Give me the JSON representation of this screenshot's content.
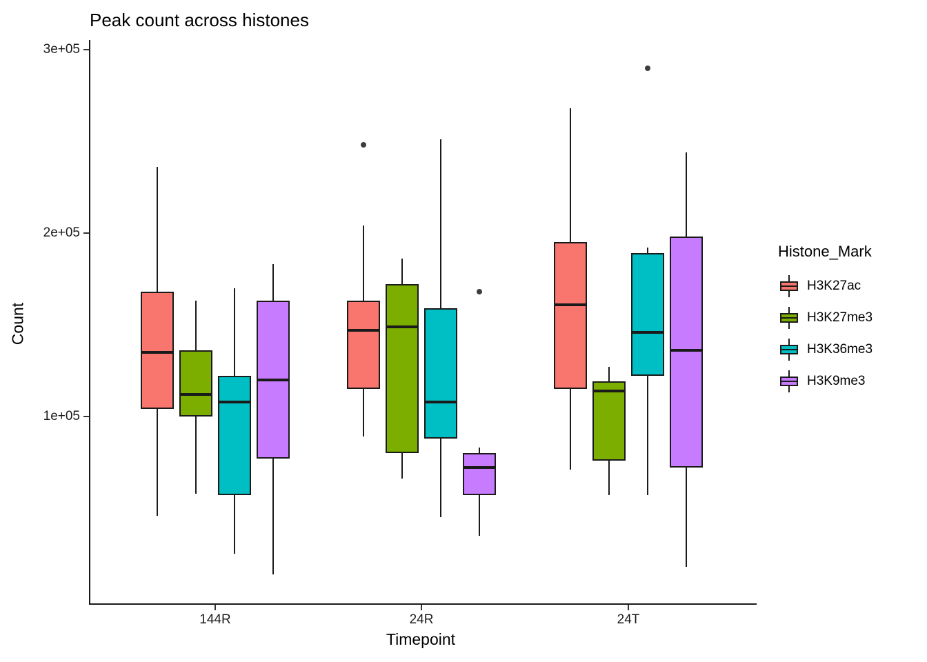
{
  "title": "Peak count across histones",
  "axes": {
    "x_label": "Timepoint",
    "y_label": "Count"
  },
  "legend": {
    "title": "Histone_Mark",
    "items": [
      {
        "label": "H3K27ac",
        "color": "#F8766D"
      },
      {
        "label": "H3K27me3",
        "color": "#7CAE00"
      },
      {
        "label": "H3K36me3",
        "color": "#00BFC4"
      },
      {
        "label": "H3K9me3",
        "color": "#C77CFF"
      }
    ]
  },
  "chart_data": {
    "type": "boxplot",
    "title": "Peak count across histones",
    "xlabel": "Timepoint",
    "ylabel": "Count",
    "ylim": [
      0,
      310000
    ],
    "grid": false,
    "legend_position": "right",
    "y_ticks": [
      {
        "label": "1e+05",
        "value": 100000
      },
      {
        "label": "2e+05",
        "value": 200000
      },
      {
        "label": "3e+05",
        "value": 300000
      }
    ],
    "categories": [
      "144R",
      "24R",
      "24T"
    ],
    "series": [
      {
        "name": "H3K27ac",
        "color": "#F8766D",
        "boxes": [
          {
            "group": "144R",
            "whisker_low": 46000,
            "q1": 104000,
            "median": 135000,
            "q3": 168000,
            "whisker_high": 236000,
            "outliers": []
          },
          {
            "group": "24R",
            "whisker_low": 89000,
            "q1": 115000,
            "median": 147000,
            "q3": 163000,
            "whisker_high": 204000,
            "outliers": [
              248000
            ]
          },
          {
            "group": "24T",
            "whisker_low": 71000,
            "q1": 115000,
            "median": 161000,
            "q3": 195000,
            "whisker_high": 268000,
            "outliers": []
          }
        ]
      },
      {
        "name": "H3K27me3",
        "color": "#7CAE00",
        "boxes": [
          {
            "group": "144R",
            "whisker_low": 58000,
            "q1": 100000,
            "median": 112000,
            "q3": 136000,
            "whisker_high": 163000,
            "outliers": []
          },
          {
            "group": "24R",
            "whisker_low": 66000,
            "q1": 80000,
            "median": 149000,
            "q3": 172000,
            "whisker_high": 186000,
            "outliers": []
          },
          {
            "group": "24T",
            "whisker_low": 57000,
            "q1": 76000,
            "median": 114000,
            "q3": 119000,
            "whisker_high": 127000,
            "outliers": []
          }
        ]
      },
      {
        "name": "H3K36me3",
        "color": "#00BFC4",
        "boxes": [
          {
            "group": "144R",
            "whisker_low": 25000,
            "q1": 57000,
            "median": 108000,
            "q3": 122000,
            "whisker_high": 170000,
            "outliers": []
          },
          {
            "group": "24R",
            "whisker_low": 45000,
            "q1": 88000,
            "median": 108000,
            "q3": 159000,
            "whisker_high": 251000,
            "outliers": []
          },
          {
            "group": "24T",
            "whisker_low": 57000,
            "q1": 122000,
            "median": 146000,
            "q3": 189000,
            "whisker_high": 192000,
            "outliers": [
              290000
            ]
          }
        ]
      },
      {
        "name": "H3K9me3",
        "color": "#C77CFF",
        "boxes": [
          {
            "group": "144R",
            "whisker_low": 14000,
            "q1": 77000,
            "median": 120000,
            "q3": 163000,
            "whisker_high": 183000,
            "outliers": []
          },
          {
            "group": "24R",
            "whisker_low": 35000,
            "q1": 57000,
            "median": 72000,
            "q3": 80000,
            "whisker_high": 83000,
            "outliers": [
              168000
            ]
          },
          {
            "group": "24T",
            "whisker_low": 18000,
            "q1": 72000,
            "median": 136000,
            "q3": 198000,
            "whisker_high": 244000,
            "outliers": []
          }
        ]
      }
    ]
  }
}
